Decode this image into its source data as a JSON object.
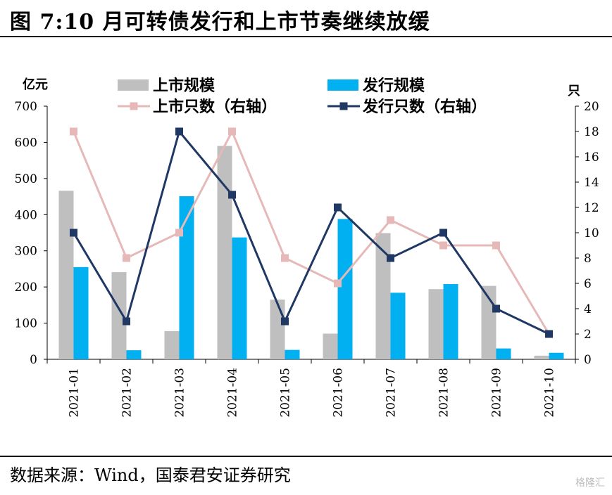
{
  "header": {
    "title": "图 7:10 月可转债发行和上市节奏继续放缓"
  },
  "footer": {
    "source": "数据来源：Wind，国泰君安证券研究",
    "watermark": "格隆汇"
  },
  "colors": {
    "listing_bar": "#bfbfbf",
    "issue_bar": "#00b0f0",
    "listing_line": "#e6b9b8",
    "issue_line": "#1f3864"
  },
  "chart_data": {
    "type": "bar",
    "categories": [
      "2021-01",
      "2021-02",
      "2021-03",
      "2021-04",
      "2021-05",
      "2021-06",
      "2021-07",
      "2021-08",
      "2021-09",
      "2021-10"
    ],
    "series": [
      {
        "name": "上市规模",
        "type": "bar",
        "axis": "left",
        "values": [
          466,
          241,
          78,
          590,
          165,
          71,
          349,
          194,
          203,
          10
        ]
      },
      {
        "name": "发行规模",
        "type": "bar",
        "axis": "left",
        "values": [
          255,
          25,
          451,
          337,
          26,
          388,
          184,
          208,
          30,
          18
        ]
      },
      {
        "name": "上市只数（右轴）",
        "type": "line",
        "axis": "right",
        "marker": "square",
        "values": [
          18,
          8,
          10,
          18,
          8,
          6,
          11,
          9,
          9,
          2
        ]
      },
      {
        "name": "发行只数（右轴）",
        "type": "line",
        "axis": "right",
        "marker": "square",
        "values": [
          10,
          3,
          18,
          13,
          3,
          12,
          8,
          10,
          4,
          2
        ]
      }
    ],
    "ylabel_left": "亿元",
    "ylabel_right": "只",
    "ylim_left": [
      0,
      700
    ],
    "yticks_left": [
      "0",
      "100",
      "200",
      "300",
      "400",
      "500",
      "600",
      "700"
    ],
    "ylim_right": [
      0,
      20
    ],
    "yticks_right": [
      "0",
      "2",
      "4",
      "6",
      "8",
      "10",
      "12",
      "14",
      "16",
      "18",
      "20"
    ],
    "grid": false,
    "legend": "top"
  }
}
